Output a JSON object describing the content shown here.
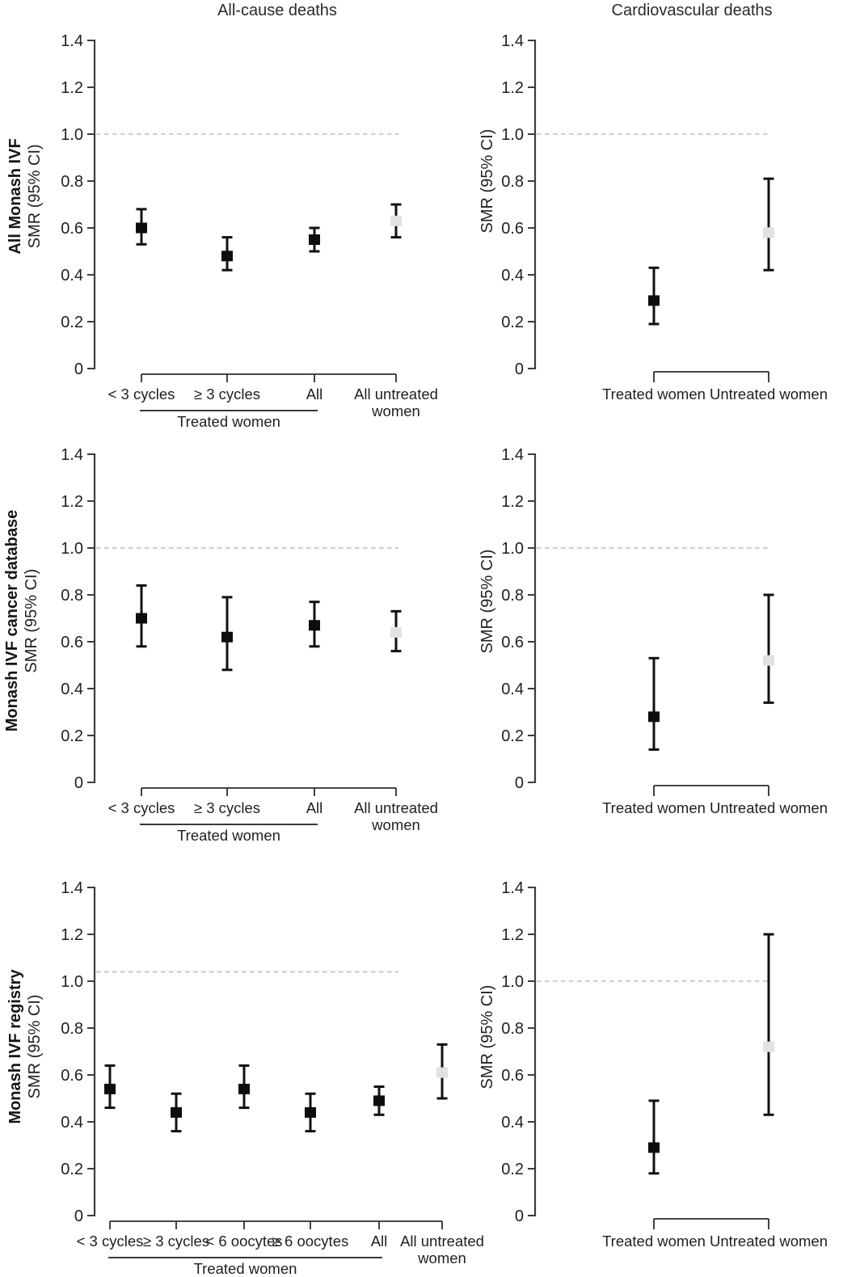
{
  "figure": {
    "column_titles": [
      "All-cause deaths",
      "Cardiovascular deaths"
    ],
    "row_labels": [
      "All Monash IVF",
      "Monash IVF cancer database",
      "Monash IVF registry"
    ],
    "y_axis_label": "SMR (95% CI)",
    "y_tick_values": [
      0,
      0.2,
      0.4,
      0.6,
      0.8,
      1.0,
      1.2,
      1.4
    ],
    "y_tick_labels": [
      "0",
      "0.2",
      "0.4",
      "0.6",
      "0.8",
      "1.0",
      "1.2",
      "1.4"
    ],
    "colors": {
      "treated_marker": "#0d0d0d",
      "untreated_marker": "#e2e2e2",
      "error_bar": "#111111",
      "axis": "#3d3d3d",
      "bracket": "#2e2e2e",
      "reference_line": "#bdbdbd",
      "text": "#1f1f1f"
    }
  },
  "chart_data": [
    {
      "type": "scatter",
      "panel": "all-monash-ivf--all-cause",
      "row_label": "All Monash IVF",
      "title": "All-cause deaths",
      "ylabel": "SMR (95% CI)",
      "ylim": [
        0,
        1.4
      ],
      "refline": 1.0,
      "points": [
        {
          "label": "< 3 cycles",
          "smr": 0.6,
          "ci": [
            0.53,
            0.68
          ],
          "series": "treated"
        },
        {
          "label": "≥ 3 cycles",
          "smr": 0.48,
          "ci": [
            0.42,
            0.56
          ],
          "series": "treated"
        },
        {
          "label": "All",
          "smr": 0.55,
          "ci": [
            0.5,
            0.6
          ],
          "series": "treated"
        },
        {
          "label": "All untreated women",
          "smr": 0.63,
          "ci": [
            0.56,
            0.7
          ],
          "series": "untreated"
        }
      ],
      "group_annotation": {
        "label": "Treated women",
        "span": [
          0,
          2
        ]
      }
    },
    {
      "type": "scatter",
      "panel": "all-monash-ivf--cardiovascular",
      "row_label": "All Monash IVF",
      "title": "Cardiovascular deaths",
      "ylabel": "SMR (95% CI)",
      "ylim": [
        0,
        1.4
      ],
      "refline": 1.0,
      "points": [
        {
          "label": "Treated women",
          "smr": 0.29,
          "ci": [
            0.19,
            0.43
          ],
          "series": "treated"
        },
        {
          "label": "Untreated women",
          "smr": 0.58,
          "ci": [
            0.42,
            0.81
          ],
          "series": "untreated"
        }
      ],
      "group_annotation": null
    },
    {
      "type": "scatter",
      "panel": "cancer-database--all-cause",
      "row_label": "Monash IVF cancer database",
      "title": "All-cause deaths",
      "ylabel": "SMR (95% CI)",
      "ylim": [
        0,
        1.4
      ],
      "refline": 1.0,
      "points": [
        {
          "label": "< 3 cycles",
          "smr": 0.7,
          "ci": [
            0.58,
            0.84
          ],
          "series": "treated"
        },
        {
          "label": "≥ 3 cycles",
          "smr": 0.62,
          "ci": [
            0.48,
            0.79
          ],
          "series": "treated"
        },
        {
          "label": "All",
          "smr": 0.67,
          "ci": [
            0.58,
            0.77
          ],
          "series": "treated"
        },
        {
          "label": "All untreated women",
          "smr": 0.64,
          "ci": [
            0.56,
            0.73
          ],
          "series": "untreated"
        }
      ],
      "group_annotation": {
        "label": "Treated women",
        "span": [
          0,
          2
        ]
      }
    },
    {
      "type": "scatter",
      "panel": "cancer-database--cardiovascular",
      "row_label": "Monash IVF cancer database",
      "title": "Cardiovascular deaths",
      "ylabel": "SMR (95% CI)",
      "ylim": [
        0,
        1.4
      ],
      "refline": 1.0,
      "points": [
        {
          "label": "Treated women",
          "smr": 0.28,
          "ci": [
            0.14,
            0.53
          ],
          "series": "treated"
        },
        {
          "label": "Untreated women",
          "smr": 0.52,
          "ci": [
            0.34,
            0.8
          ],
          "series": "untreated"
        }
      ],
      "group_annotation": null
    },
    {
      "type": "scatter",
      "panel": "ivf-registry--all-cause",
      "row_label": "Monash IVF registry",
      "title": "All-cause deaths",
      "ylabel": "SMR (95% CI)",
      "ylim": [
        0,
        1.4
      ],
      "refline": 1.04,
      "points": [
        {
          "label": "< 3 cycles",
          "smr": 0.54,
          "ci": [
            0.46,
            0.64
          ],
          "series": "treated"
        },
        {
          "label": "≥ 3 cycles",
          "smr": 0.44,
          "ci": [
            0.36,
            0.52
          ],
          "series": "treated"
        },
        {
          "label": "< 6 oocytes",
          "smr": 0.54,
          "ci": [
            0.46,
            0.64
          ],
          "series": "treated"
        },
        {
          "label": "≥ 6 oocytes",
          "smr": 0.44,
          "ci": [
            0.36,
            0.52
          ],
          "series": "treated"
        },
        {
          "label": "All",
          "smr": 0.49,
          "ci": [
            0.43,
            0.55
          ],
          "series": "treated"
        },
        {
          "label": "All untreated women",
          "smr": 0.61,
          "ci": [
            0.5,
            0.73
          ],
          "series": "untreated"
        }
      ],
      "group_annotation": {
        "label": "Treated women",
        "span": [
          0,
          4
        ]
      }
    },
    {
      "type": "scatter",
      "panel": "ivf-registry--cardiovascular",
      "row_label": "Monash IVF registry",
      "title": "Cardiovascular deaths",
      "ylabel": "SMR (95% CI)",
      "ylim": [
        0,
        1.4
      ],
      "refline": 1.0,
      "points": [
        {
          "label": "Treated women",
          "smr": 0.29,
          "ci": [
            0.18,
            0.49
          ],
          "series": "treated"
        },
        {
          "label": "Untreated women",
          "smr": 0.72,
          "ci": [
            0.43,
            1.2
          ],
          "series": "untreated"
        }
      ],
      "group_annotation": null
    }
  ]
}
